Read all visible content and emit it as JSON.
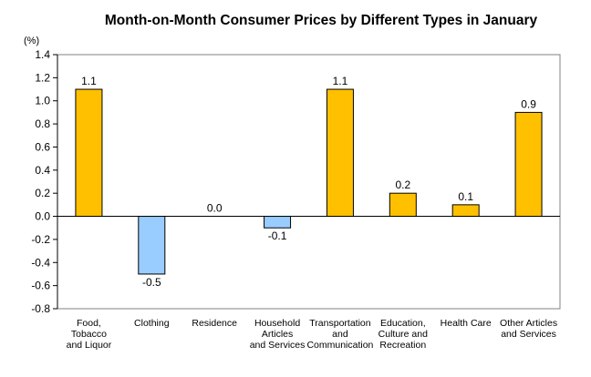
{
  "chart_data": {
    "type": "bar",
    "title": "Month-on-Month Consumer Prices by Different Types in January",
    "unit_label": "(%)",
    "ylim": [
      -0.8,
      1.4
    ],
    "yticks": [
      "1.4",
      "1.2",
      "1.0",
      "0.8",
      "0.6",
      "0.4",
      "0.2",
      "0.0",
      "-0.2",
      "-0.4",
      "-0.6",
      "-0.8"
    ],
    "categories": [
      [
        "Food,",
        "Tobacco",
        "and Liquor"
      ],
      [
        "Clothing"
      ],
      [
        "Residence"
      ],
      [
        "Household",
        "Articles",
        "and Services"
      ],
      [
        "Transportation",
        "and",
        "Communication"
      ],
      [
        "Education,",
        "Culture and",
        "Recreation"
      ],
      [
        "Health Care"
      ],
      [
        "Other Articles",
        "and Services"
      ]
    ],
    "values": [
      1.1,
      -0.5,
      0.0,
      -0.1,
      1.1,
      0.2,
      0.1,
      0.9
    ],
    "value_labels": [
      "1.1",
      "-0.5",
      "0.0",
      "-0.1",
      "1.1",
      "0.2",
      "0.1",
      "0.9"
    ],
    "colors": {
      "positive": "#FFC000",
      "negative": "#99CCFF",
      "bar_outline": "#000000",
      "axis": "#000000",
      "frame": "#808080"
    },
    "grid": false,
    "legend": "none"
  }
}
